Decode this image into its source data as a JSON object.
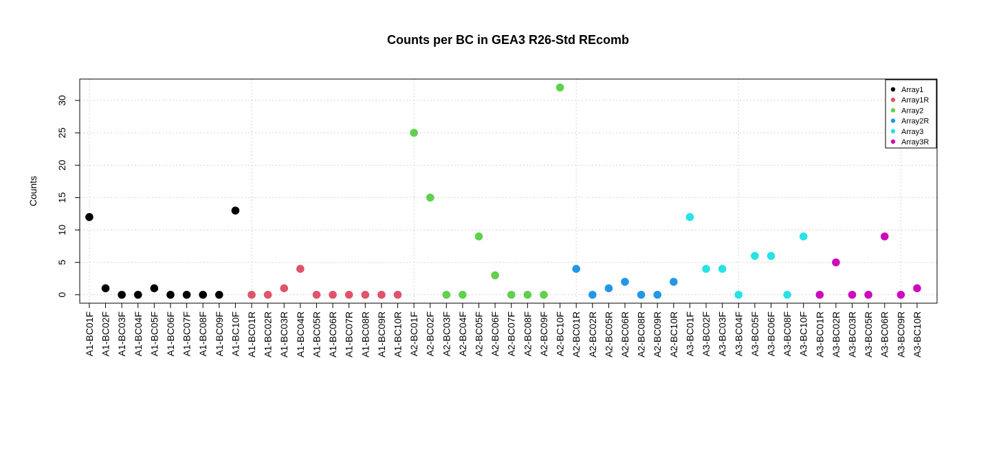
{
  "chart_data": {
    "type": "scatter",
    "title": "Counts per BC in GEA3 R26-Std REcomb",
    "xlabel": "",
    "ylabel": "Counts",
    "ylim": [
      -1.3,
      33.3
    ],
    "yticks": [
      0,
      5,
      10,
      15,
      20,
      25,
      30
    ],
    "grid": true,
    "legend_position": "top-right",
    "categories": [
      "A1-BC01F",
      "A1-BC02F",
      "A1-BC03F",
      "A1-BC04F",
      "A1-BC05F",
      "A1-BC06F",
      "A1-BC07F",
      "A1-BC08F",
      "A1-BC09F",
      "A1-BC10F",
      "A1-BC01R",
      "A1-BC02R",
      "A1-BC03R",
      "A1-BC04R",
      "A1-BC05R",
      "A1-BC06R",
      "A1-BC07R",
      "A1-BC08R",
      "A1-BC09R",
      "A1-BC10R",
      "A2-BC01F",
      "A2-BC02F",
      "A2-BC03F",
      "A2-BC04F",
      "A2-BC05F",
      "A2-BC06F",
      "A2-BC07F",
      "A2-BC08F",
      "A2-BC09F",
      "A2-BC10F",
      "A2-BC01R",
      "A2-BC02R",
      "A2-BC05R",
      "A2-BC06R",
      "A2-BC08R",
      "A2-BC09R",
      "A2-BC10R",
      "A3-BC01F",
      "A3-BC02F",
      "A3-BC03F",
      "A3-BC04F",
      "A3-BC05F",
      "A3-BC06F",
      "A3-BC08F",
      "A3-BC10F",
      "A3-BC01R",
      "A3-BC02R",
      "A3-BC03R",
      "A3-BC05R",
      "A3-BC06R",
      "A3-BC09R",
      "A3-BC10R"
    ],
    "series": [
      {
        "name": "Array1",
        "color": "#000000",
        "x": [
          "A1-BC01F",
          "A1-BC02F",
          "A1-BC03F",
          "A1-BC04F",
          "A1-BC05F",
          "A1-BC06F",
          "A1-BC07F",
          "A1-BC08F",
          "A1-BC09F",
          "A1-BC10F"
        ],
        "values": [
          12,
          1,
          0,
          0,
          1,
          0,
          0,
          0,
          0,
          13
        ]
      },
      {
        "name": "Array1R",
        "color": "#DF536B",
        "x": [
          "A1-BC01R",
          "A1-BC02R",
          "A1-BC03R",
          "A1-BC04R",
          "A1-BC05R",
          "A1-BC06R",
          "A1-BC07R",
          "A1-BC08R",
          "A1-BC09R",
          "A1-BC10R"
        ],
        "values": [
          0,
          0,
          1,
          4,
          0,
          0,
          0,
          0,
          0,
          0
        ]
      },
      {
        "name": "Array2",
        "color": "#61D04F",
        "x": [
          "A2-BC01F",
          "A2-BC02F",
          "A2-BC03F",
          "A2-BC04F",
          "A2-BC05F",
          "A2-BC06F",
          "A2-BC07F",
          "A2-BC08F",
          "A2-BC09F",
          "A2-BC10F"
        ],
        "values": [
          25,
          15,
          0,
          0,
          9,
          3,
          0,
          0,
          0,
          32
        ]
      },
      {
        "name": "Array2R",
        "color": "#2297E6",
        "x": [
          "A2-BC01R",
          "A2-BC02R",
          "A2-BC05R",
          "A2-BC06R",
          "A2-BC08R",
          "A2-BC09R",
          "A2-BC10R"
        ],
        "values": [
          4,
          0,
          1,
          2,
          0,
          0,
          2
        ]
      },
      {
        "name": "Array3",
        "color": "#28E2E5",
        "x": [
          "A3-BC01F",
          "A3-BC02F",
          "A3-BC03F",
          "A3-BC04F",
          "A3-BC05F",
          "A3-BC06F",
          "A3-BC08F",
          "A3-BC10F"
        ],
        "values": [
          12,
          4,
          4,
          0,
          6,
          6,
          0,
          9
        ]
      },
      {
        "name": "Array3R",
        "color": "#CD0BBC",
        "x": [
          "A3-BC01R",
          "A3-BC02R",
          "A3-BC03R",
          "A3-BC05R",
          "A3-BC06R",
          "A3-BC09R",
          "A3-BC10R"
        ],
        "values": [
          0,
          5,
          0,
          0,
          9,
          0,
          1
        ]
      }
    ]
  }
}
